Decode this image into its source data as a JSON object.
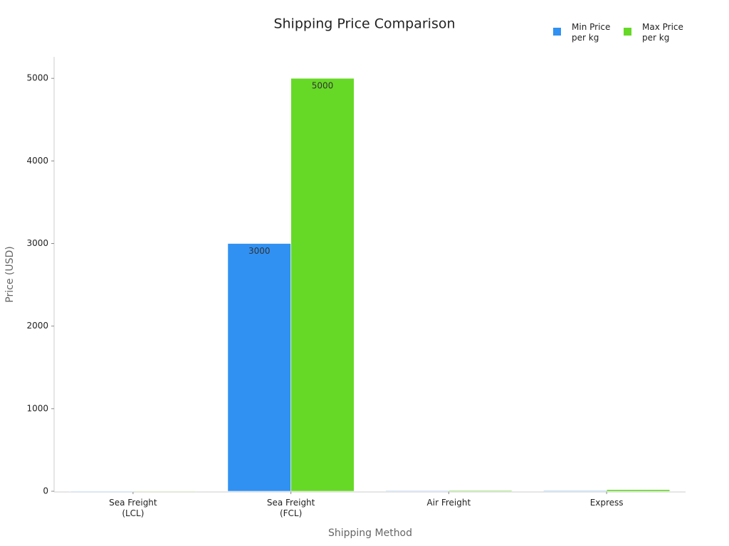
{
  "chart_data": {
    "type": "bar",
    "title": "Shipping Price Comparison",
    "x_label": "Shipping Method",
    "y_label": "Price (USD)",
    "categories": [
      "Sea Freight (LCL)",
      "Sea Freight (FCL)",
      "Air Freight",
      "Express"
    ],
    "series": [
      {
        "name": "Min Price per kg",
        "color": "#3091f2",
        "values": [
          1,
          3000,
          5,
          8
        ]
      },
      {
        "name": "Max Price per kg",
        "color": "#66d926",
        "values": [
          3,
          5000,
          10,
          20
        ]
      }
    ],
    "ylim": [
      0,
      5260
    ],
    "yticks": [
      0,
      1000,
      2000,
      3000,
      4000,
      5000
    ],
    "legend": "top-right",
    "grid": false
  }
}
